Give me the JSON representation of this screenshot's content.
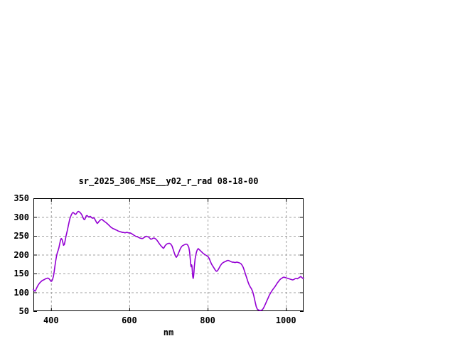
{
  "window": {
    "background": "#ffffff"
  },
  "chart_data": {
    "type": "line",
    "title": "sr_2025_306_MSE__y02_r_rad 08-18-00",
    "xlabel": "nm",
    "ylabel": "",
    "xlim": [
      355,
      1045
    ],
    "ylim": [
      50,
      350
    ],
    "x_ticks": [
      400,
      600,
      800,
      1000
    ],
    "y_ticks": [
      50,
      100,
      150,
      200,
      250,
      300,
      350
    ],
    "grid": true,
    "legend": "none",
    "colors": {
      "line": "#9400d3",
      "grid": "#a0a0a0",
      "border": "#000000",
      "text": "#000000",
      "background": "#ffffff"
    },
    "series": [
      {
        "name": "sr_2025_306_MSE__y02_r_rad",
        "color": "#9400d3",
        "points": [
          [
            355,
            108
          ],
          [
            357,
            105
          ],
          [
            359,
            103
          ],
          [
            361,
            106
          ],
          [
            363,
            111
          ],
          [
            365,
            115
          ],
          [
            367,
            119
          ],
          [
            369,
            122
          ],
          [
            371,
            125
          ],
          [
            373,
            127
          ],
          [
            375,
            129
          ],
          [
            377,
            131
          ],
          [
            379,
            132
          ],
          [
            381,
            133
          ],
          [
            383,
            134
          ],
          [
            386,
            136
          ],
          [
            389,
            137
          ],
          [
            392,
            138
          ],
          [
            395,
            136
          ],
          [
            398,
            132
          ],
          [
            400,
            129
          ],
          [
            402,
            130
          ],
          [
            404,
            135
          ],
          [
            406,
            142
          ],
          [
            408,
            155
          ],
          [
            410,
            170
          ],
          [
            412,
            184
          ],
          [
            414,
            196
          ],
          [
            416,
            205
          ],
          [
            418,
            211
          ],
          [
            420,
            218
          ],
          [
            422,
            228
          ],
          [
            424,
            238
          ],
          [
            426,
            243
          ],
          [
            428,
            241
          ],
          [
            430,
            233
          ],
          [
            432,
            225
          ],
          [
            434,
            227
          ],
          [
            436,
            237
          ],
          [
            438,
            248
          ],
          [
            440,
            257
          ],
          [
            442,
            266
          ],
          [
            444,
            276
          ],
          [
            446,
            286
          ],
          [
            448,
            295
          ],
          [
            450,
            301
          ],
          [
            452,
            306
          ],
          [
            454,
            310
          ],
          [
            456,
            312
          ],
          [
            458,
            311
          ],
          [
            460,
            309
          ],
          [
            462,
            307
          ],
          [
            464,
            308
          ],
          [
            466,
            311
          ],
          [
            468,
            314
          ],
          [
            470,
            315
          ],
          [
            472,
            314
          ],
          [
            474,
            312
          ],
          [
            476,
            310
          ],
          [
            478,
            307
          ],
          [
            480,
            303
          ],
          [
            482,
            298
          ],
          [
            484,
            294
          ],
          [
            486,
            293
          ],
          [
            488,
            298
          ],
          [
            490,
            303
          ],
          [
            492,
            304
          ],
          [
            494,
            302
          ],
          [
            496,
            300
          ],
          [
            498,
            301
          ],
          [
            500,
            302
          ],
          [
            502,
            300
          ],
          [
            504,
            298
          ],
          [
            506,
            297
          ],
          [
            508,
            298
          ],
          [
            510,
            297
          ],
          [
            512,
            294
          ],
          [
            514,
            290
          ],
          [
            516,
            286
          ],
          [
            518,
            283
          ],
          [
            520,
            285
          ],
          [
            522,
            288
          ],
          [
            524,
            290
          ],
          [
            526,
            292
          ],
          [
            528,
            293
          ],
          [
            530,
            294
          ],
          [
            532,
            292
          ],
          [
            534,
            290
          ],
          [
            536,
            289
          ],
          [
            538,
            287
          ],
          [
            541,
            285
          ],
          [
            544,
            282
          ],
          [
            547,
            279
          ],
          [
            550,
            276
          ],
          [
            553,
            273
          ],
          [
            556,
            271
          ],
          [
            559,
            269
          ],
          [
            562,
            268
          ],
          [
            565,
            266
          ],
          [
            568,
            265
          ],
          [
            571,
            263
          ],
          [
            574,
            262
          ],
          [
            577,
            261
          ],
          [
            580,
            260
          ],
          [
            583,
            259
          ],
          [
            586,
            259
          ],
          [
            589,
            258
          ],
          [
            592,
            259
          ],
          [
            595,
            259
          ],
          [
            598,
            258
          ],
          [
            601,
            258
          ],
          [
            604,
            257
          ],
          [
            607,
            255
          ],
          [
            610,
            253
          ],
          [
            613,
            251
          ],
          [
            616,
            249
          ],
          [
            619,
            248
          ],
          [
            622,
            247
          ],
          [
            625,
            245
          ],
          [
            628,
            244
          ],
          [
            631,
            243
          ],
          [
            634,
            243
          ],
          [
            637,
            245
          ],
          [
            640,
            247
          ],
          [
            643,
            249
          ],
          [
            646,
            248
          ],
          [
            649,
            247
          ],
          [
            652,
            244
          ],
          [
            655,
            241
          ],
          [
            658,
            242
          ],
          [
            661,
            244
          ],
          [
            664,
            244
          ],
          [
            667,
            242
          ],
          [
            670,
            239
          ],
          [
            673,
            235
          ],
          [
            676,
            230
          ],
          [
            679,
            226
          ],
          [
            682,
            222
          ],
          [
            685,
            219
          ],
          [
            687,
            217
          ],
          [
            689,
            219
          ],
          [
            691,
            223
          ],
          [
            694,
            227
          ],
          [
            697,
            229
          ],
          [
            700,
            230
          ],
          [
            703,
            230
          ],
          [
            706,
            228
          ],
          [
            709,
            223
          ],
          [
            712,
            214
          ],
          [
            715,
            204
          ],
          [
            718,
            196
          ],
          [
            720,
            193
          ],
          [
            722,
            196
          ],
          [
            724,
            200
          ],
          [
            726,
            205
          ],
          [
            728,
            210
          ],
          [
            730,
            215
          ],
          [
            732,
            219
          ],
          [
            734,
            222
          ],
          [
            736,
            224
          ],
          [
            738,
            225
          ],
          [
            740,
            226
          ],
          [
            742,
            227
          ],
          [
            744,
            228
          ],
          [
            746,
            228
          ],
          [
            748,
            227
          ],
          [
            750,
            224
          ],
          [
            752,
            219
          ],
          [
            754,
            207
          ],
          [
            756,
            185
          ],
          [
            757,
            172
          ],
          [
            758,
            168
          ],
          [
            759,
            173
          ],
          [
            760,
            170
          ],
          [
            761,
            155
          ],
          [
            762,
            142
          ],
          [
            763,
            137
          ],
          [
            764,
            141
          ],
          [
            765,
            153
          ],
          [
            766,
            168
          ],
          [
            768,
            188
          ],
          [
            770,
            201
          ],
          [
            772,
            209
          ],
          [
            774,
            214
          ],
          [
            776,
            216
          ],
          [
            778,
            214
          ],
          [
            780,
            212
          ],
          [
            783,
            209
          ],
          [
            786,
            206
          ],
          [
            789,
            203
          ],
          [
            792,
            201
          ],
          [
            795,
            199
          ],
          [
            798,
            197
          ],
          [
            801,
            195
          ],
          [
            804,
            190
          ],
          [
            807,
            182
          ],
          [
            810,
            175
          ],
          [
            813,
            170
          ],
          [
            816,
            165
          ],
          [
            819,
            160
          ],
          [
            822,
            156
          ],
          [
            825,
            157
          ],
          [
            828,
            162
          ],
          [
            831,
            168
          ],
          [
            834,
            173
          ],
          [
            837,
            177
          ],
          [
            840,
            179
          ],
          [
            843,
            181
          ],
          [
            846,
            182
          ],
          [
            849,
            184
          ],
          [
            852,
            185
          ],
          [
            855,
            184
          ],
          [
            858,
            182
          ],
          [
            861,
            181
          ],
          [
            864,
            180
          ],
          [
            867,
            180
          ],
          [
            870,
            179
          ],
          [
            873,
            180
          ],
          [
            876,
            180
          ],
          [
            879,
            179
          ],
          [
            882,
            178
          ],
          [
            885,
            176
          ],
          [
            888,
            172
          ],
          [
            891,
            166
          ],
          [
            894,
            157
          ],
          [
            897,
            147
          ],
          [
            900,
            138
          ],
          [
            903,
            128
          ],
          [
            906,
            120
          ],
          [
            909,
            114
          ],
          [
            912,
            109
          ],
          [
            915,
            102
          ],
          [
            918,
            90
          ],
          [
            921,
            76
          ],
          [
            924,
            62
          ],
          [
            927,
            55
          ],
          [
            930,
            53
          ],
          [
            933,
            52
          ],
          [
            936,
            52
          ],
          [
            939,
            53
          ],
          [
            942,
            57
          ],
          [
            945,
            63
          ],
          [
            948,
            70
          ],
          [
            951,
            77
          ],
          [
            954,
            84
          ],
          [
            957,
            91
          ],
          [
            960,
            97
          ],
          [
            963,
            102
          ],
          [
            966,
            107
          ],
          [
            969,
            111
          ],
          [
            972,
            115
          ],
          [
            975,
            120
          ],
          [
            978,
            125
          ],
          [
            981,
            129
          ],
          [
            984,
            133
          ],
          [
            987,
            136
          ],
          [
            990,
            138
          ],
          [
            993,
            140
          ],
          [
            996,
            140
          ],
          [
            999,
            139
          ],
          [
            1002,
            138
          ],
          [
            1005,
            137
          ],
          [
            1008,
            136
          ],
          [
            1011,
            135
          ],
          [
            1014,
            134
          ],
          [
            1017,
            133
          ],
          [
            1020,
            134
          ],
          [
            1023,
            136
          ],
          [
            1026,
            137
          ],
          [
            1029,
            136
          ],
          [
            1032,
            138
          ],
          [
            1035,
            140
          ],
          [
            1038,
            142
          ],
          [
            1041,
            139
          ],
          [
            1043,
            137
          ],
          [
            1045,
            138
          ]
        ]
      }
    ]
  }
}
